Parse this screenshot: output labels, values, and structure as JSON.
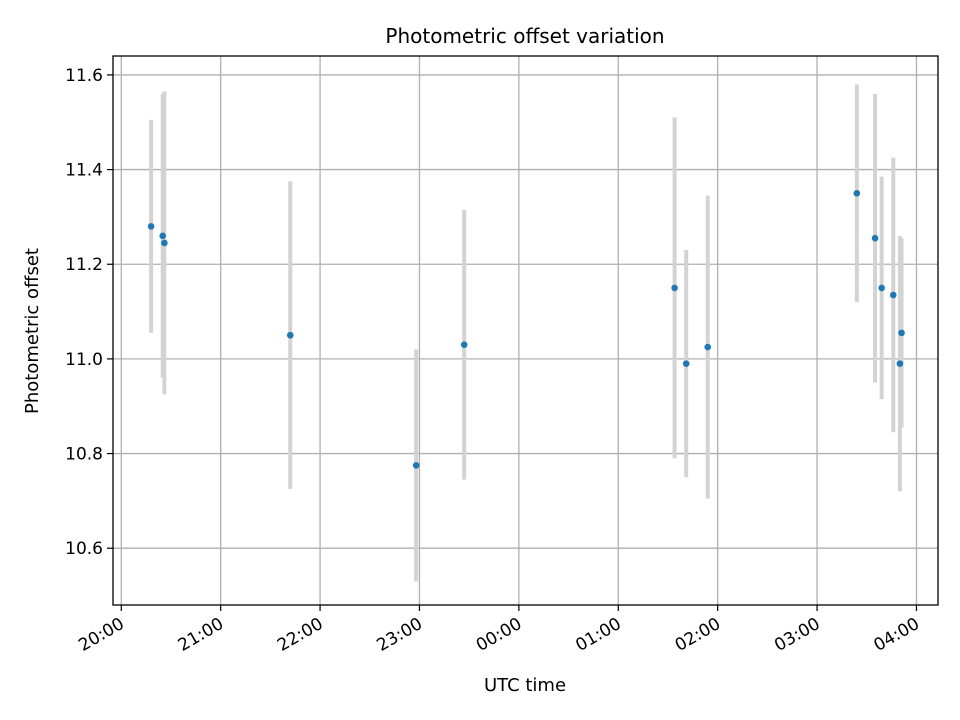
{
  "chart_data": {
    "type": "scatter",
    "title": "Photometric offset variation",
    "xlabel": "UTC time",
    "ylabel": "Photometric offset",
    "x_ticks": [
      "20:00",
      "21:00",
      "22:00",
      "23:00",
      "00:00",
      "01:00",
      "02:00",
      "03:00",
      "04:00"
    ],
    "y_ticks": [
      "10.6",
      "10.8",
      "11.0",
      "11.2",
      "11.4",
      "11.6"
    ],
    "ylim": [
      10.48,
      11.64
    ],
    "xlim": [
      "19:55",
      "04:13"
    ],
    "grid": true,
    "colors": {
      "point": "#1f77b4",
      "errorbar": "#d3d3d3",
      "grid": "#b0b0b0"
    },
    "points": [
      {
        "x": "20:18",
        "y": 11.28,
        "err": 0.225
      },
      {
        "x": "20:25",
        "y": 11.26,
        "err": 0.3
      },
      {
        "x": "20:26",
        "y": 11.245,
        "err": 0.32
      },
      {
        "x": "21:42",
        "y": 11.05,
        "err": 0.325
      },
      {
        "x": "22:58",
        "y": 10.775,
        "err": 0.245
      },
      {
        "x": "23:27",
        "y": 11.03,
        "err": 0.285
      },
      {
        "x": "01:34",
        "y": 11.15,
        "err": 0.36
      },
      {
        "x": "01:41",
        "y": 10.99,
        "err": 0.24
      },
      {
        "x": "01:54",
        "y": 11.025,
        "err": 0.32
      },
      {
        "x": "03:24",
        "y": 11.35,
        "err": 0.23
      },
      {
        "x": "03:35",
        "y": 11.255,
        "err": 0.305
      },
      {
        "x": "03:39",
        "y": 11.15,
        "err": 0.235
      },
      {
        "x": "03:46",
        "y": 11.135,
        "err": 0.29
      },
      {
        "x": "03:50",
        "y": 10.99,
        "err": 0.27
      },
      {
        "x": "03:51",
        "y": 11.055,
        "err": 0.2
      }
    ]
  }
}
